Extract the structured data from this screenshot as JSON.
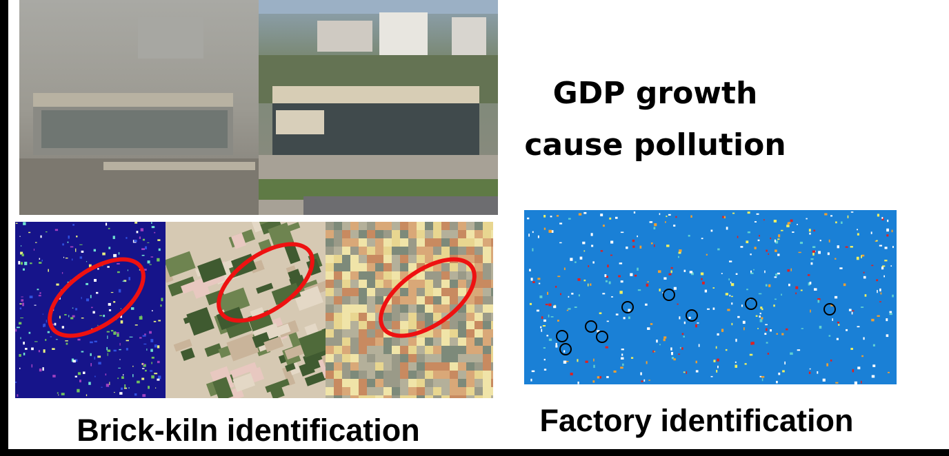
{
  "title": {
    "lines": [
      "GDP growth",
      "cause pollution"
    ]
  },
  "captions": {
    "brick_kiln": "Brick-kiln identification",
    "factory": "Factory identification"
  }
}
